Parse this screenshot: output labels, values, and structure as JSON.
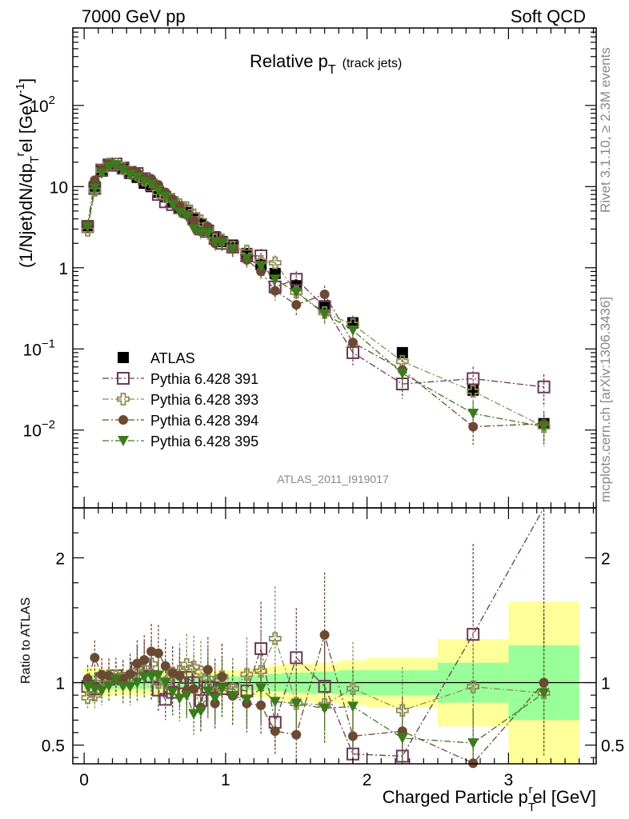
{
  "header": {
    "left": "7000 GeV pp",
    "right": "Soft QCD"
  },
  "side_labels": {
    "rivet": "Rivet 3.1.10, ≥ 2.3M events",
    "mcplots": "mcplots.cern.ch [arXiv:1306.3436]"
  },
  "analysis_id": "ATLAS_2011_I919017",
  "chart_data": [
    {
      "panel": "main",
      "type": "scatter",
      "title": "Relative p_T (track jets)",
      "title_main": "Relative p",
      "title_sub": "T",
      "title_suffix": "(track jets)",
      "ylabel": "(1/Njet)dN/dp_T^rel [GeV^-1]",
      "yscale": "log",
      "ylim": [
        0.0011,
        900
      ],
      "xlim": [
        -0.08,
        3.62
      ],
      "ytick_labels": [
        {
          "value": 100,
          "base": "10",
          "exp": "2"
        },
        {
          "value": 10,
          "base": "10",
          "exp": ""
        },
        {
          "value": 1,
          "base": "1",
          "exp": ""
        },
        {
          "value": 0.1,
          "base": "10",
          "exp": "−1"
        },
        {
          "value": 0.01,
          "base": "10",
          "exp": "−2"
        }
      ],
      "x": [
        0.025,
        0.075,
        0.125,
        0.175,
        0.225,
        0.275,
        0.325,
        0.375,
        0.425,
        0.475,
        0.525,
        0.575,
        0.625,
        0.675,
        0.725,
        0.775,
        0.825,
        0.875,
        0.925,
        0.975,
        1.05,
        1.15,
        1.25,
        1.35,
        1.5,
        1.7,
        1.9,
        2.25,
        2.75,
        3.25
      ],
      "series": [
        {
          "name": "ATLAS",
          "marker": "square-filled",
          "color": "#000000",
          "line": "none",
          "values": [
            3.3,
            10.0,
            15.5,
            18.0,
            18.0,
            16.5,
            14.5,
            13.0,
            11.0,
            10.0,
            8.5,
            7.5,
            6.5,
            5.5,
            4.8,
            4.0,
            3.5,
            2.9,
            2.4,
            2.1,
            1.9,
            1.5,
            1.1,
            0.85,
            0.6,
            0.34,
            0.21,
            0.09,
            0.031,
            0.012
          ]
        },
        {
          "name": "Pythia 6.428 391",
          "marker": "square-open",
          "color": "#6b3a55",
          "line": "dashdot",
          "values": [
            3.2,
            9.5,
            16.0,
            18.5,
            19.0,
            17.0,
            15.0,
            14.5,
            12.5,
            10.5,
            8.0,
            6.5,
            6.0,
            5.5,
            5.0,
            4.0,
            3.0,
            2.8,
            2.3,
            2.0,
            1.8,
            1.4,
            1.4,
            0.58,
            0.72,
            0.33,
            0.09,
            0.037,
            0.043,
            0.034
          ]
        },
        {
          "name": "Pythia 6.428 393",
          "marker": "cross-open",
          "color": "#8e8a56",
          "line": "dashdot",
          "values": [
            2.9,
            9.0,
            16.0,
            19.0,
            19.0,
            17.0,
            15.0,
            14.0,
            12.0,
            11.5,
            8.5,
            7.5,
            7.0,
            6.0,
            5.5,
            4.5,
            3.8,
            3.0,
            2.2,
            2.2,
            1.8,
            1.6,
            1.2,
            1.15,
            0.5,
            0.28,
            0.2,
            0.07,
            0.03,
            0.011
          ]
        },
        {
          "name": "Pythia 6.428 394",
          "marker": "circle-filled",
          "color": "#6b4a33",
          "line": "dashdot",
          "values": [
            3.4,
            12.0,
            16.5,
            19.0,
            18.5,
            17.0,
            15.5,
            15.0,
            13.0,
            12.5,
            10.5,
            8.5,
            7.0,
            5.8,
            4.5,
            3.8,
            2.8,
            3.2,
            2.0,
            2.2,
            1.7,
            1.25,
            0.9,
            0.52,
            0.35,
            0.47,
            0.12,
            0.055,
            0.011,
            0.012
          ]
        },
        {
          "name": "Pythia 6.428 395",
          "marker": "triangle-down-filled",
          "color": "#3d7a1e",
          "line": "dashdot",
          "values": [
            3.2,
            9.5,
            14.5,
            17.5,
            18.5,
            16.0,
            14.0,
            13.0,
            11.5,
            10.5,
            9.0,
            7.5,
            6.0,
            4.8,
            4.3,
            3.0,
            2.7,
            2.7,
            2.1,
            2.0,
            1.7,
            1.3,
            1.05,
            0.72,
            0.5,
            0.27,
            0.17,
            0.05,
            0.016,
            0.011
          ]
        }
      ]
    },
    {
      "panel": "ratio",
      "type": "scatter",
      "ylabel": "Ratio to ATLAS",
      "xlabel": "Charged Particle p_T^rel [GeV]",
      "xlabel_main": "Charged Particle p",
      "xlabel_sub": "T",
      "xlabel_sup": "r",
      "xlabel_rest": "el [GeV]",
      "ylim": [
        0.35,
        2.4
      ],
      "xlim": [
        -0.08,
        3.62
      ],
      "ytick_labels": [
        "2",
        "1",
        "0.5"
      ],
      "xtick_labels": [
        "0",
        "1",
        "2",
        "3"
      ],
      "bands": {
        "x_edges": [
          0.0,
          0.1,
          0.2,
          0.3,
          0.4,
          0.5,
          0.6,
          0.7,
          0.8,
          0.9,
          1.0,
          1.1,
          1.2,
          1.3,
          1.4,
          1.6,
          1.8,
          2.0,
          2.5,
          3.0,
          3.5
        ],
        "green_halfwidth": [
          0.06,
          0.05,
          0.05,
          0.05,
          0.05,
          0.05,
          0.05,
          0.05,
          0.05,
          0.05,
          0.05,
          0.06,
          0.06,
          0.07,
          0.08,
          0.09,
          0.1,
          0.1,
          0.16,
          0.3
        ],
        "yellow_halfwidth": [
          0.12,
          0.11,
          0.1,
          0.1,
          0.1,
          0.1,
          0.1,
          0.1,
          0.1,
          0.1,
          0.1,
          0.11,
          0.12,
          0.14,
          0.15,
          0.16,
          0.18,
          0.2,
          0.35,
          0.65
        ],
        "green_color": "#99ff99",
        "yellow_color": "#ffff99"
      }
    }
  ]
}
